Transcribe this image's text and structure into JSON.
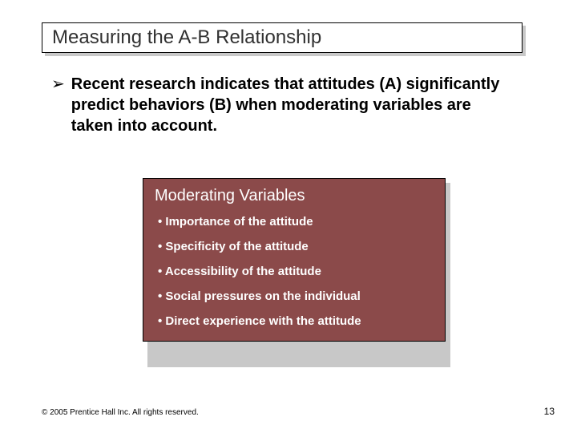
{
  "title": "Measuring the A-B Relationship",
  "main_bullet": {
    "marker": "➢",
    "text": "Recent research indicates that attitudes (A) significantly predict behaviors (B) when moderating variables are taken into account."
  },
  "box": {
    "title": "Moderating Variables",
    "background_color": "#8b4a4a",
    "text_color": "#ffffff",
    "items": [
      "Importance of the attitude",
      "Specificity of the attitude",
      "Accessibility of the attitude",
      "Social pressures on the individual",
      "Direct experience with the attitude"
    ]
  },
  "footer": {
    "copyright": "© 2005 Prentice Hall Inc. All rights reserved.",
    "page_number": "13"
  },
  "colors": {
    "title_text": "#313131",
    "body_text": "#000000",
    "shadow": "#c8c8c8",
    "box_bg": "#8b4a4a",
    "box_text": "#ffffff",
    "page_bg": "#ffffff"
  }
}
